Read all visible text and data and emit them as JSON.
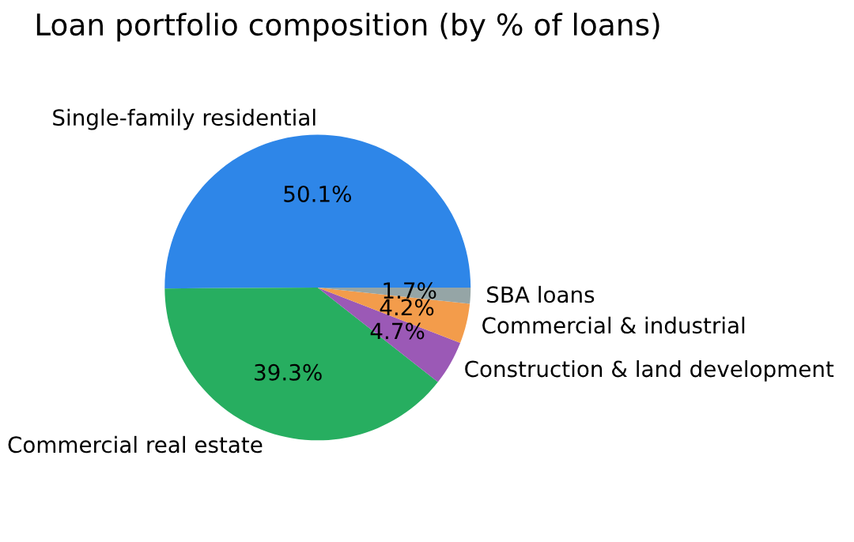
{
  "chart_data": {
    "type": "pie",
    "title": "Loan portfolio composition (by % of loans)",
    "categories": [
      "Single-family residential",
      "Commercial real estate",
      "Construction & land development",
      "Commercial & industrial",
      "SBA loans"
    ],
    "values": [
      50.1,
      39.3,
      4.7,
      4.2,
      1.7
    ],
    "colors": [
      "#2e86e8",
      "#27ae60",
      "#9b59b6",
      "#f39c4b",
      "#95a5a6"
    ],
    "value_labels": [
      "50.1%",
      "39.3%",
      "4.7%",
      "4.2%",
      "1.7%"
    ],
    "legend": false
  }
}
